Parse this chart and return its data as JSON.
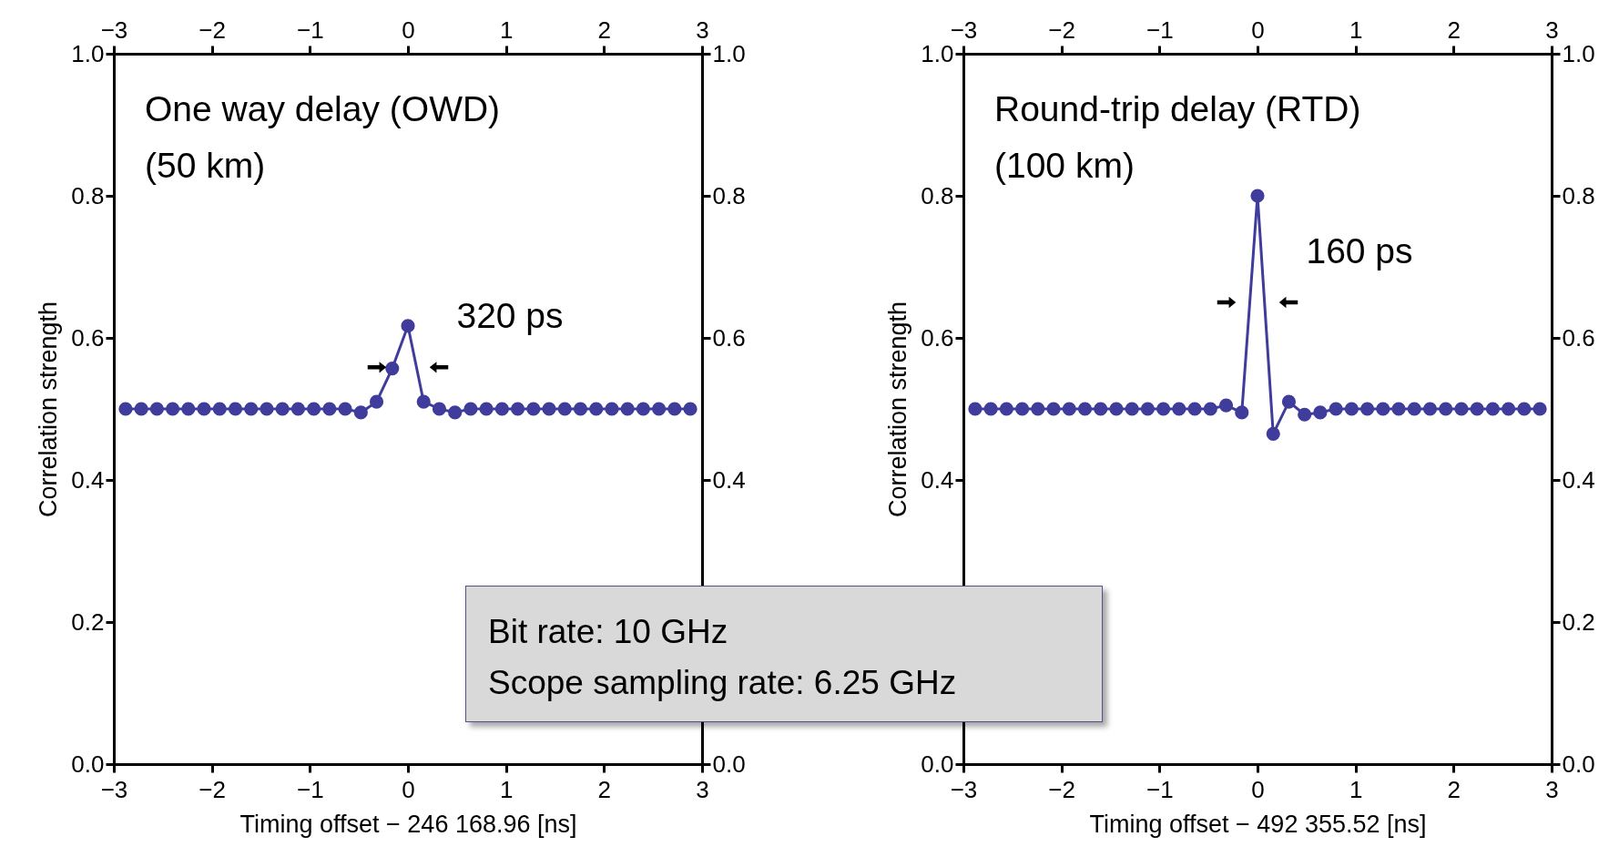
{
  "chart_data": [
    {
      "type": "line",
      "xlabel": "Timing offset − 246 168.96 [ns]",
      "ylabel": "Correlation strength",
      "x": [
        -2.88,
        -2.72,
        -2.56,
        -2.4,
        -2.24,
        -2.08,
        -1.92,
        -1.76,
        -1.6,
        -1.44,
        -1.28,
        -1.12,
        -0.96,
        -0.8,
        -0.64,
        -0.48,
        -0.32,
        -0.16,
        0,
        0.16,
        0.32,
        0.48,
        0.64,
        0.8,
        0.96,
        1.12,
        1.28,
        1.44,
        1.6,
        1.76,
        1.92,
        2.08,
        2.24,
        2.4,
        2.56,
        2.72,
        2.88
      ],
      "series": [
        {
          "color": "#3f3c9b",
          "values": [
            0.5,
            0.5,
            0.5,
            0.5,
            0.5,
            0.5,
            0.5,
            0.5,
            0.5,
            0.5,
            0.5,
            0.5,
            0.5,
            0.5,
            0.5,
            0.495,
            0.51,
            0.557,
            0.617,
            0.51,
            0.5,
            0.495,
            0.5,
            0.5,
            0.5,
            0.5,
            0.5,
            0.5,
            0.5,
            0.5,
            0.5,
            0.5,
            0.5,
            0.5,
            0.5,
            0.5,
            0.5
          ]
        }
      ],
      "marker": "circle",
      "line_style": "solid",
      "grid": false,
      "xlim": [
        -3,
        3
      ],
      "xticks": [
        {
          "value": -3,
          "label": "−3"
        },
        {
          "value": -2,
          "label": "−2"
        },
        {
          "value": -1,
          "label": "−1"
        },
        0,
        1,
        2,
        3
      ],
      "x2lim": [
        -3,
        3
      ],
      "x2ticks": [
        {
          "value": -3,
          "label": "−3"
        },
        {
          "value": -2,
          "label": "−2"
        },
        {
          "value": -1,
          "label": "−1"
        },
        0,
        1,
        2,
        3
      ],
      "ylim": [
        0,
        1
      ],
      "yticks": [
        {
          "value": 0,
          "label": "0.0"
        },
        0.2,
        0.4,
        0.6,
        0.8,
        {
          "value": 1,
          "label": "1.0"
        }
      ],
      "y2lim": [
        0,
        1
      ],
      "y2ticks": [
        {
          "value": 0,
          "label": "0.0"
        },
        {
          "value": 0.2,
          "label": null
        },
        0.4,
        0.6,
        0.8,
        {
          "value": 1,
          "label": "1.0"
        }
      ],
      "annotations": [
        "One way delay (OWD)",
        "(50 km)",
        "320 ps",
        "Bit rate: 10 GHz",
        "Scope sampling rate: 6.25 GHz"
      ]
    },
    {
      "type": "line",
      "xlabel": "Timing offset − 492 355.52 [ns]",
      "ylabel": "Correlation strength",
      "x": [
        -2.88,
        -2.72,
        -2.56,
        -2.4,
        -2.24,
        -2.08,
        -1.92,
        -1.76,
        -1.6,
        -1.44,
        -1.28,
        -1.12,
        -0.96,
        -0.8,
        -0.64,
        -0.48,
        -0.32,
        -0.16,
        0,
        0.16,
        0.32,
        0.48,
        0.64,
        0.8,
        0.96,
        1.12,
        1.28,
        1.44,
        1.6,
        1.76,
        1.92,
        2.08,
        2.24,
        2.4,
        2.56,
        2.72,
        2.88
      ],
      "series": [
        {
          "color": "#3f3c9b",
          "values": [
            0.5,
            0.5,
            0.5,
            0.5,
            0.5,
            0.5,
            0.5,
            0.5,
            0.5,
            0.5,
            0.5,
            0.5,
            0.5,
            0.5,
            0.5,
            0.5,
            0.505,
            0.495,
            0.8,
            0.465,
            0.51,
            0.492,
            0.495,
            0.5,
            0.5,
            0.5,
            0.5,
            0.5,
            0.5,
            0.5,
            0.5,
            0.5,
            0.5,
            0.5,
            0.5,
            0.5,
            0.5
          ]
        }
      ],
      "marker": "circle",
      "line_style": "solid",
      "grid": false,
      "xlim": [
        -3,
        3
      ],
      "xticks": [
        {
          "value": -3,
          "label": "−3"
        },
        {
          "value": -2,
          "label": "−2"
        },
        {
          "value": -1,
          "label": "−1"
        },
        0,
        1,
        2,
        3
      ],
      "x2lim": [
        -3,
        3
      ],
      "x2ticks": [
        {
          "value": -3,
          "label": "−3"
        },
        {
          "value": -2,
          "label": "−2"
        },
        {
          "value": -1,
          "label": "−1"
        },
        0,
        1,
        2,
        3
      ],
      "ylim": [
        0,
        1
      ],
      "yticks": [
        {
          "value": 0,
          "label": "0.0"
        },
        {
          "value": 0.2,
          "label": null
        },
        0.4,
        0.6,
        0.8,
        {
          "value": 1,
          "label": "1.0"
        }
      ],
      "y2lim": [
        0,
        1
      ],
      "y2ticks": [
        {
          "value": 0,
          "label": "0.0"
        },
        0.2,
        0.4,
        0.6,
        0.8,
        {
          "value": 1,
          "label": "1.0"
        }
      ],
      "annotations": [
        "Round-trip delay (RTD)",
        "(100 km)",
        "160 ps"
      ]
    }
  ]
}
